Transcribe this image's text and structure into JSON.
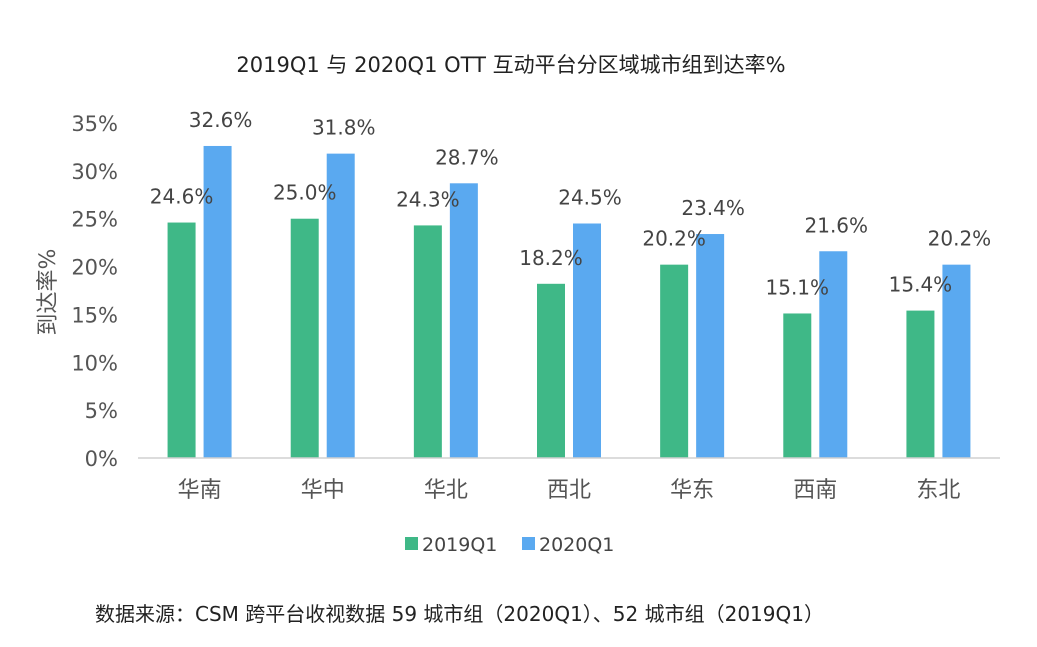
{
  "chart_data": {
    "type": "bar",
    "title": "2019Q1 与 2020Q1  OTT 互动平台分区域城市组到达率%",
    "xlabel": "",
    "ylabel": "到达率%",
    "categories": [
      "华南",
      "华中",
      "华北",
      "西北",
      "华东",
      "西南",
      "东北"
    ],
    "series": [
      {
        "name": "2019Q1",
        "color": "#3fb887",
        "values": [
          24.6,
          25.0,
          24.3,
          18.2,
          20.2,
          15.1,
          15.4
        ]
      },
      {
        "name": "2020Q1",
        "color": "#5aa9f0",
        "values": [
          32.6,
          31.8,
          28.7,
          24.5,
          23.4,
          21.6,
          20.2
        ]
      }
    ],
    "data_labels": [
      [
        "24.6%",
        "25.0%",
        "24.3%",
        "18.2%",
        "20.2%",
        "15.1%",
        "15.4%"
      ],
      [
        "32.6%",
        "31.8%",
        "28.7%",
        "24.5%",
        "23.4%",
        "21.6%",
        "20.2%"
      ]
    ],
    "ylim": [
      0,
      35
    ],
    "yticks": [
      0,
      5,
      10,
      15,
      20,
      25,
      30,
      35
    ],
    "ytick_labels": [
      "0%",
      "5%",
      "10%",
      "15%",
      "20%",
      "25%",
      "30%",
      "35%"
    ],
    "grid": false,
    "legend_position": "bottom"
  },
  "source_note": "数据来源：CSM 跨平台收视数据  59 城市组（2020Q1）、52 城市组（2019Q1）"
}
